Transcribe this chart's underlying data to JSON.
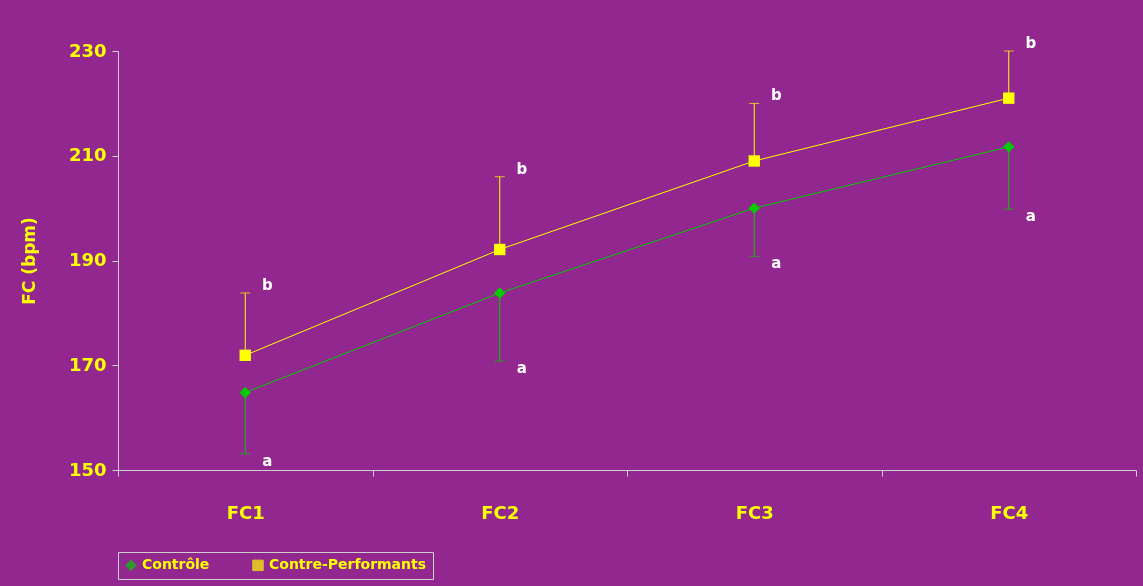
{
  "chart_data": {
    "type": "line",
    "ylabel": "FC (bpm)",
    "categories": [
      "FC1",
      "FC2",
      "FC3",
      "FC4"
    ],
    "ylim": [
      150,
      230
    ],
    "yticks": [
      150,
      170,
      190,
      210,
      230
    ],
    "grid": false,
    "legend": "bottom",
    "line_style": "solid",
    "series": [
      {
        "name": "Contrôle",
        "color": "#00cc00",
        "marker": "diamond",
        "values": [
          164.8,
          183.8,
          200,
          211.7
        ],
        "errors": [
          [
            153.1,
            164.8
          ],
          [
            170.8,
            183.8
          ],
          [
            190.8,
            200
          ],
          [
            199.8,
            211.7
          ]
        ]
      },
      {
        "name": "Contre-Performants",
        "color": "#ffff00",
        "marker": "square",
        "values": [
          171.9,
          192.1,
          209,
          221
        ],
        "errors": [
          [
            171.9,
            183.8
          ],
          [
            192.1,
            206
          ],
          [
            209,
            220
          ],
          [
            221,
            230
          ]
        ]
      }
    ],
    "annotations": [
      {
        "text": "a",
        "x": "FC1",
        "y": 153.1
      },
      {
        "text": "b",
        "x": "FC1",
        "y": 183.8
      },
      {
        "text": "a",
        "x": "FC2",
        "y": 170.8
      },
      {
        "text": "b",
        "x": "FC2",
        "y": 206
      },
      {
        "text": "a",
        "x": "FC3",
        "y": 190.8
      },
      {
        "text": "b",
        "x": "FC3",
        "y": 220
      },
      {
        "text": "a",
        "x": "FC4",
        "y": 199.8
      },
      {
        "text": "b",
        "x": "FC4",
        "y": 230
      }
    ]
  }
}
